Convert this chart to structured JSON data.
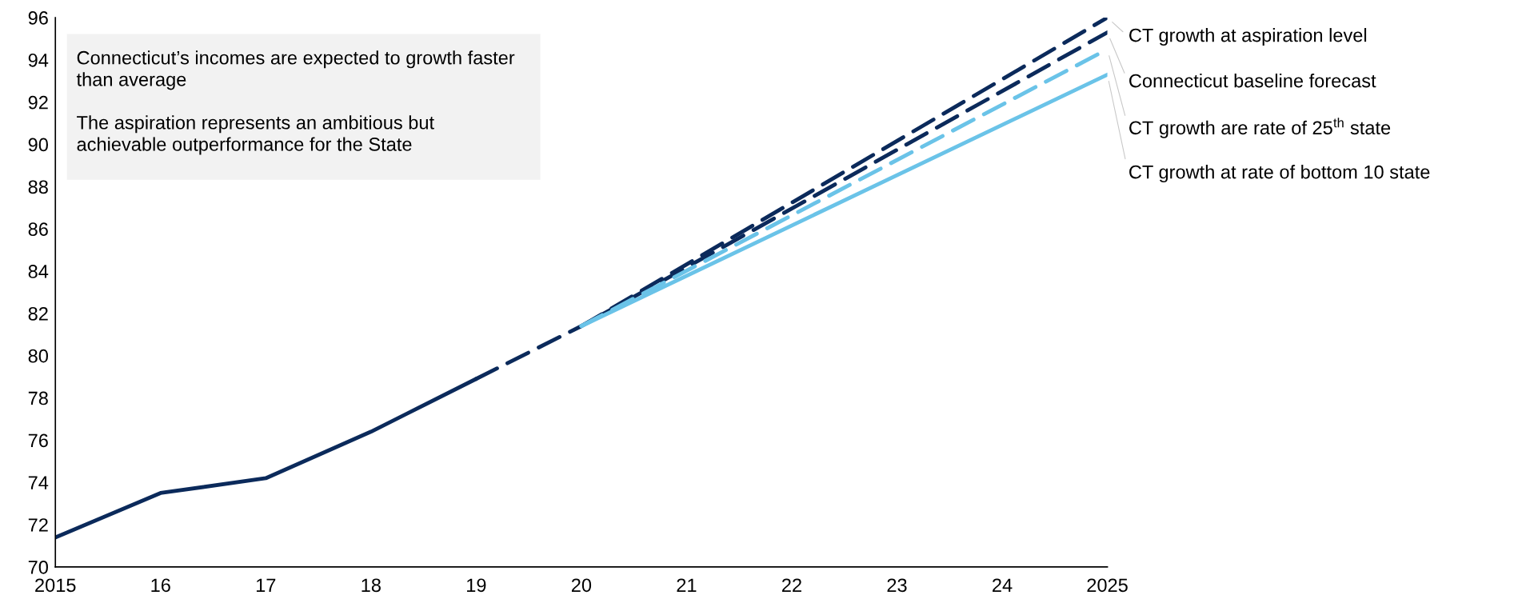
{
  "chart_data": {
    "type": "line",
    "xlim": [
      2015,
      2025
    ],
    "xticks": [
      2015,
      {
        "value": 2016,
        "label": "16"
      },
      {
        "value": 2017,
        "label": "17"
      },
      {
        "value": 2018,
        "label": "18"
      },
      {
        "value": 2019,
        "label": "19"
      },
      {
        "value": 2020,
        "label": "20"
      },
      {
        "value": 2021,
        "label": "21"
      },
      {
        "value": 2022,
        "label": "22"
      },
      {
        "value": 2023,
        "label": "23"
      },
      {
        "value": 2024,
        "label": "24"
      },
      2025
    ],
    "ylim": [
      70,
      96
    ],
    "yticks": [
      70,
      72,
      74,
      76,
      78,
      80,
      82,
      84,
      86,
      88,
      90,
      92,
      94,
      96
    ],
    "grid": false,
    "legend": false,
    "marker": "none",
    "series": [
      {
        "x": [
          2015,
          2016,
          2017,
          2018,
          2019
        ],
        "values": [
          71.4,
          73.5,
          74.2,
          76.4,
          78.9
        ],
        "color": "#0b2a5b",
        "line_style": "solid"
      },
      {
        "name": "CT growth at aspiration level",
        "x": [
          2020,
          2025
        ],
        "values": [
          81.4,
          96.0
        ],
        "color": "#0b2a5b",
        "line_style": "dashed"
      },
      {
        "name": "Connecticut baseline forecast",
        "x": [
          2019,
          2020,
          2025
        ],
        "values": [
          78.9,
          81.4,
          95.3
        ],
        "color": "#0b2a5b",
        "line_style": "dashed"
      },
      {
        "name": "CT growth are rate of 25$^{th}$ state",
        "x": [
          2020,
          2025
        ],
        "values": [
          81.4,
          94.5
        ],
        "color": "#6ac3e8",
        "line_style": "dashed"
      },
      {
        "name": "CT growth at rate of bottom 10 state",
        "x": [
          2020,
          2025
        ],
        "values": [
          81.4,
          93.3
        ],
        "color": "#6ac3e8",
        "line_style": "solid"
      }
    ],
    "annotations": [
      "Connecticut’s incomes are expected to growth faster than average",
      "The aspiration represents an ambitious but achievable outperformance for the State"
    ]
  }
}
